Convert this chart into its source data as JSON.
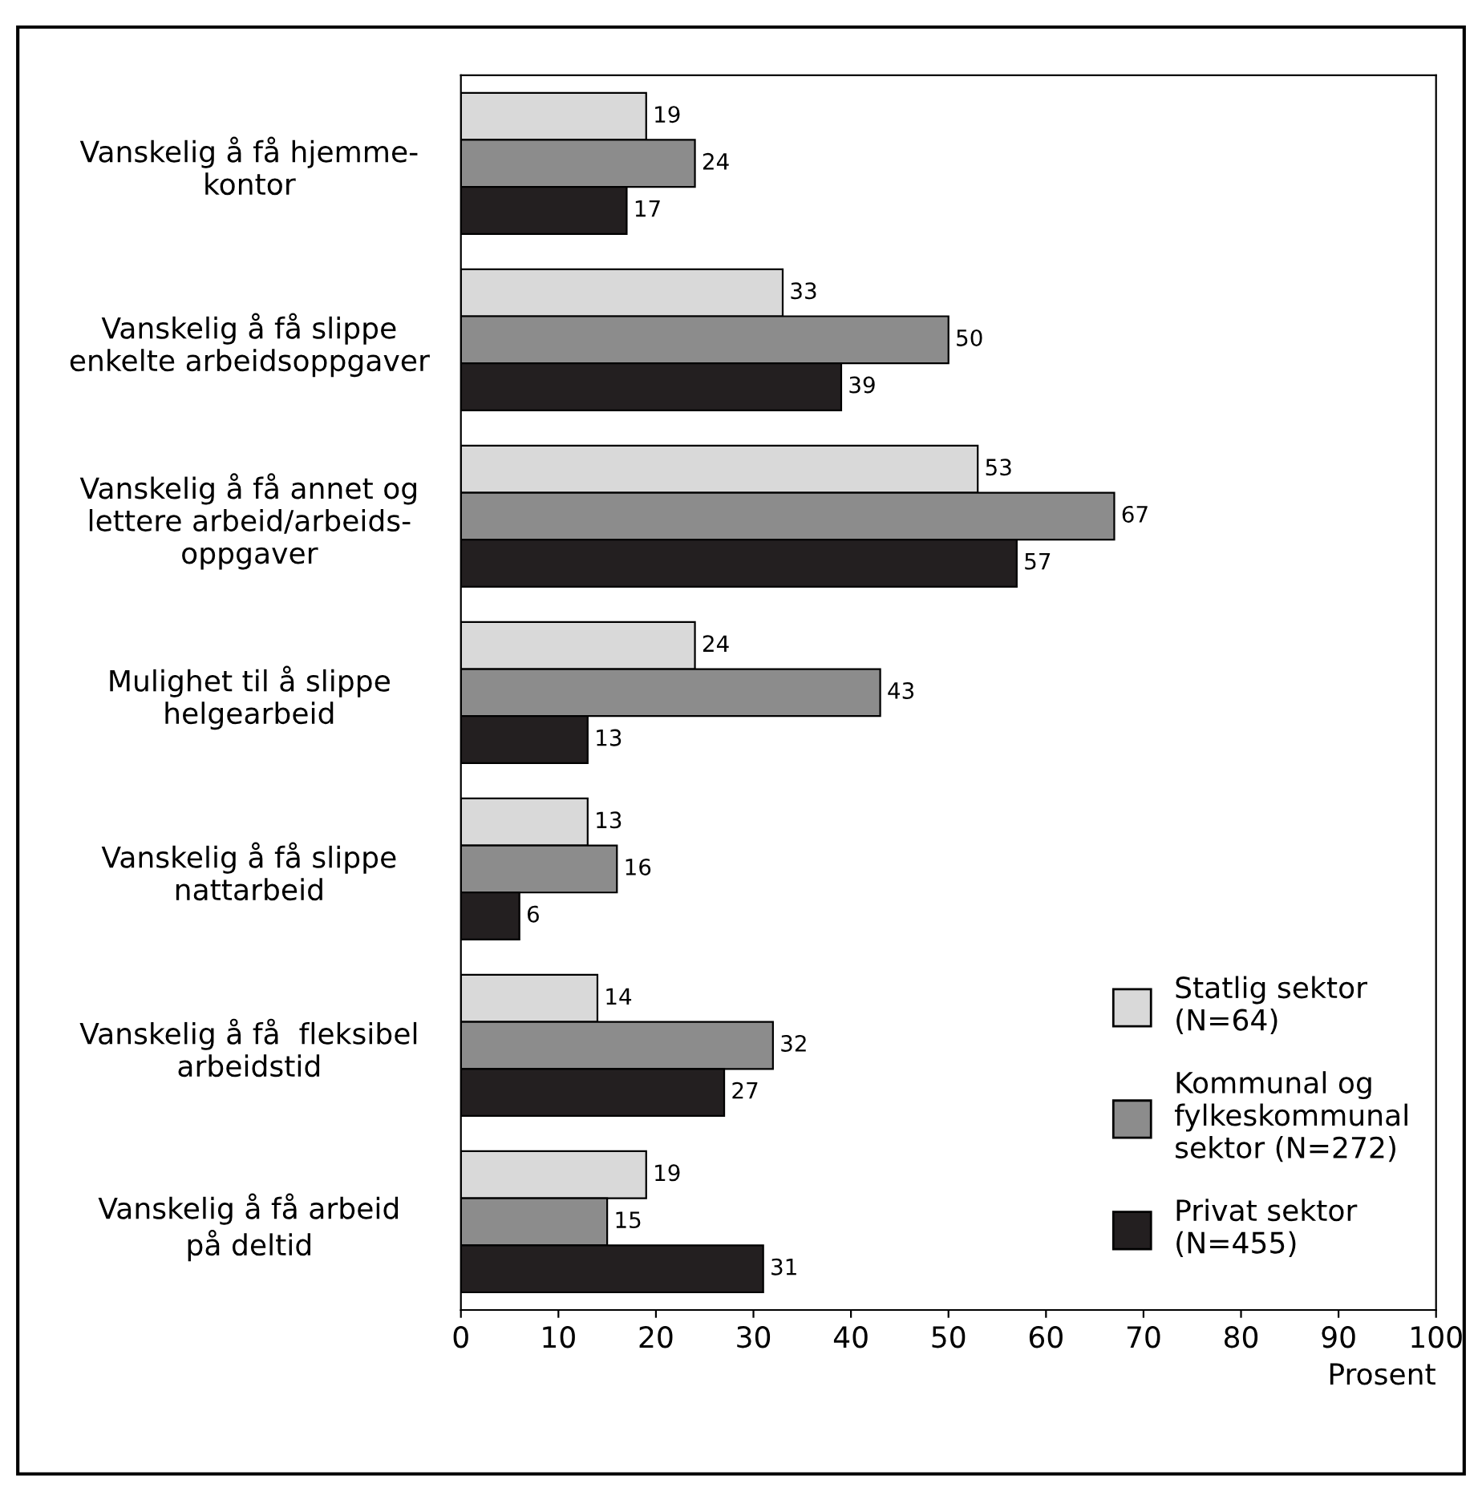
{
  "chart_data": {
    "type": "bar",
    "orientation": "horizontal",
    "xlabel": "Prosent",
    "categories": [
      "Vanskelig å få hjemme-\nkontor",
      "Vanskelig å få slippe\nenkelte arbeidsoppgaver",
      "Vanskelig å få annet og\nlettere arbeid/arbeids-\noppgaver",
      "Mulighet til å slippe\nhelgearbeid",
      "Vanskelig å få slippe\nnattarbeid",
      "Vanskelig å få  fleksibel\narbeidstid",
      "Vanskelig å få arbeid\npå deltid"
    ],
    "series": [
      {
        "name": "Statlig sektor\n(N=64)",
        "color": "#d9d9d9",
        "values": [
          19,
          33,
          53,
          24,
          13,
          14,
          19
        ]
      },
      {
        "name": "Kommunal og\nfylkeskommunal\nsektor (N=272)",
        "color": "#8c8c8c",
        "values": [
          24,
          50,
          67,
          43,
          16,
          32,
          15
        ]
      },
      {
        "name": "Privat sektor\n(N=455)",
        "color": "#231f20",
        "values": [
          17,
          39,
          57,
          13,
          6,
          27,
          31
        ]
      }
    ],
    "xlim": [
      0,
      100
    ],
    "xticks": [
      0,
      10,
      20,
      30,
      40,
      50,
      60,
      70,
      80,
      90,
      100
    ],
    "data_labels": true,
    "grid": false,
    "legend": "bottom right"
  }
}
